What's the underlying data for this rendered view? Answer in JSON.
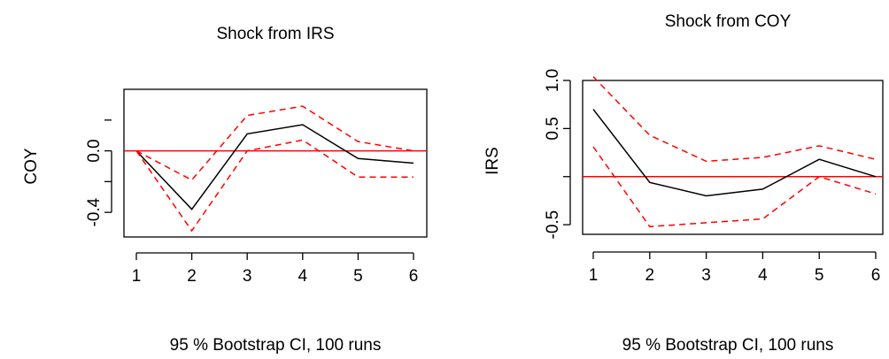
{
  "chart_data": [
    {
      "type": "line",
      "title": "Shock from IRS",
      "ylabel": "COY",
      "xlabel": "95 % Bootstrap CI,  100 runs",
      "x": [
        1,
        2,
        3,
        4,
        5,
        6
      ],
      "xlim": [
        1,
        6
      ],
      "ylim": [
        -0.56,
        0.4
      ],
      "yticks": [
        -0.4,
        0.0
      ],
      "ytick_labels": [
        "-0.4",
        "0.0"
      ],
      "xtick_labels": [
        "1",
        "2",
        "3",
        "4",
        "5",
        "6"
      ],
      "reference_line": 0.0,
      "series": [
        {
          "role": "response",
          "values": [
            0.0,
            -0.38,
            0.11,
            0.17,
            -0.05,
            -0.08
          ],
          "color": "#000000",
          "dash": "solid"
        },
        {
          "role": "upper",
          "values": [
            0.0,
            -0.19,
            0.23,
            0.29,
            0.06,
            0.0
          ],
          "color": "#ff0000",
          "dash": "dashed"
        },
        {
          "role": "lower",
          "values": [
            0.0,
            -0.52,
            0.0,
            0.07,
            -0.17,
            -0.17
          ],
          "color": "#ff0000",
          "dash": "dashed"
        }
      ],
      "grid": false,
      "reference_color": "#ff0000"
    },
    {
      "type": "line",
      "title": "Shock from COY",
      "ylabel": "IRS",
      "xlabel": "95 % Bootstrap CI,  100 runs",
      "x": [
        1,
        2,
        3,
        4,
        5,
        6
      ],
      "xlim": [
        1,
        6
      ],
      "ylim": [
        -0.6,
        1.0
      ],
      "yticks": [
        -0.5,
        0.5,
        1.0
      ],
      "ytick_labels": [
        "-0.5",
        "0.5",
        "1.0"
      ],
      "xtick_labels": [
        "1",
        "2",
        "3",
        "4",
        "5",
        "6"
      ],
      "reference_line": 0.0,
      "series": [
        {
          "role": "response",
          "values": [
            0.7,
            -0.06,
            -0.2,
            -0.13,
            0.18,
            0.0
          ],
          "color": "#000000",
          "dash": "solid"
        },
        {
          "role": "upper",
          "values": [
            1.04,
            0.43,
            0.16,
            0.2,
            0.32,
            0.18
          ],
          "color": "#ff0000",
          "dash": "dashed"
        },
        {
          "role": "lower",
          "values": [
            0.31,
            -0.52,
            -0.48,
            -0.44,
            0.0,
            -0.18
          ],
          "color": "#ff0000",
          "dash": "dashed"
        }
      ],
      "grid": false,
      "reference_color": "#ff0000"
    }
  ]
}
